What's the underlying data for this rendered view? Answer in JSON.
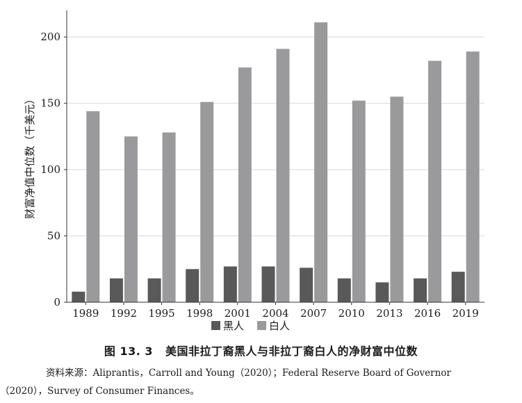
{
  "chart_data": {
    "type": "bar",
    "categories": [
      "1989",
      "1992",
      "1995",
      "1998",
      "2001",
      "2004",
      "2007",
      "2010",
      "2013",
      "2016",
      "2019"
    ],
    "series": [
      {
        "name": "黑人",
        "color": "#595959",
        "values": [
          8,
          18,
          18,
          25,
          27,
          27,
          26,
          18,
          15,
          18,
          23
        ]
      },
      {
        "name": "白人",
        "color": "#9a9a9c",
        "values": [
          144,
          125,
          128,
          151,
          177,
          191,
          211,
          152,
          155,
          182,
          189
        ]
      }
    ],
    "title": "",
    "xlabel": "",
    "ylabel": "财富净值中位数（千美元）",
    "ylim": [
      0,
      220
    ],
    "yticks": [
      0,
      50,
      100,
      150,
      200
    ],
    "grid": "horizontal",
    "legend": "bottom-center"
  },
  "figure": {
    "number": "图 13. 3",
    "title": "美国非拉丁裔黑人与非拉丁裔白人的净财富中位数"
  },
  "source_note": "资料来源：Aliprantis，Carroll and Young（2020）；Federal Reserve Board of Governor（2020），Survey of Consumer Finances。"
}
